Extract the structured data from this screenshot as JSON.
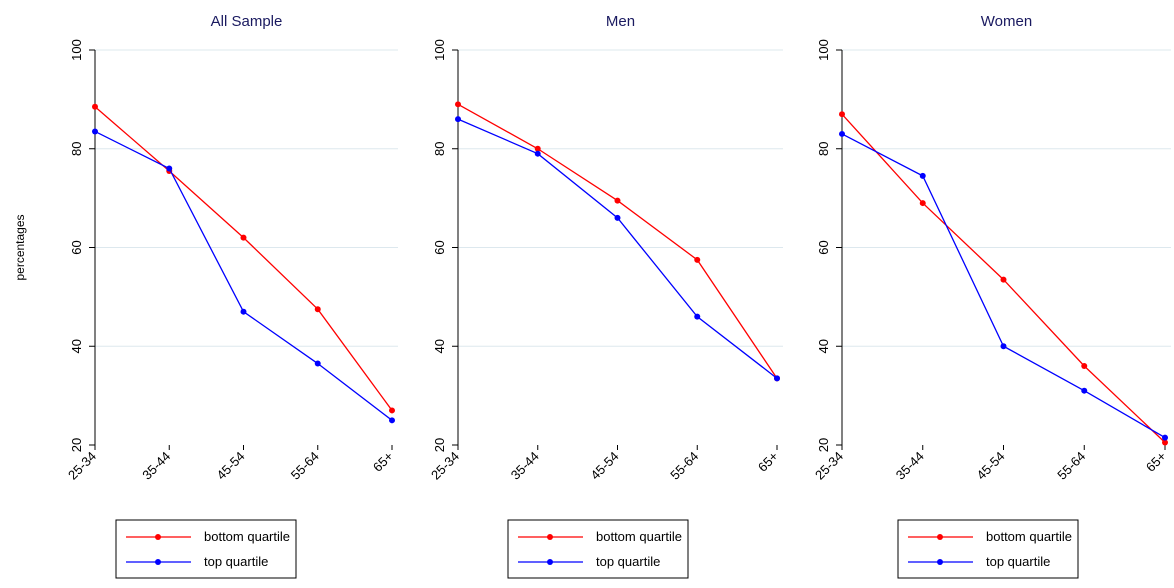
{
  "chart_data": [
    {
      "type": "line",
      "title": "All Sample",
      "ylabel": "percentages",
      "categories": [
        "25-34",
        "35-44",
        "45-54",
        "55-64",
        "65+"
      ],
      "ylim": [
        20,
        100
      ],
      "yticks": [
        20,
        40,
        60,
        80,
        100
      ],
      "series": [
        {
          "name": "bottom quartile",
          "color": "#ff0000",
          "values": [
            88.5,
            75.5,
            62,
            47.5,
            27
          ]
        },
        {
          "name": "top quartile",
          "color": "#0000ff",
          "values": [
            83.5,
            76,
            47,
            36.5,
            25
          ]
        }
      ],
      "legend": "bottom"
    },
    {
      "type": "line",
      "title": "Men",
      "categories": [
        "25-34",
        "35-44",
        "45-54",
        "55-64",
        "65+"
      ],
      "ylim": [
        20,
        100
      ],
      "yticks": [
        20,
        40,
        60,
        80,
        100
      ],
      "series": [
        {
          "name": "bottom quartile",
          "color": "#ff0000",
          "values": [
            89,
            80,
            69.5,
            57.5,
            33.5
          ]
        },
        {
          "name": "top quartile",
          "color": "#0000ff",
          "values": [
            86,
            79,
            66,
            46,
            33.5
          ]
        }
      ],
      "legend": "bottom"
    },
    {
      "type": "line",
      "title": "Women",
      "categories": [
        "25-34",
        "35-44",
        "45-54",
        "55-64",
        "65+"
      ],
      "ylim": [
        20,
        100
      ],
      "yticks": [
        20,
        40,
        60,
        80,
        100
      ],
      "series": [
        {
          "name": "bottom quartile",
          "color": "#ff0000",
          "values": [
            87,
            69,
            53.5,
            36,
            20.5
          ]
        },
        {
          "name": "top quartile",
          "color": "#0000ff",
          "values": [
            83,
            74.5,
            40,
            31,
            21.5
          ]
        }
      ],
      "legend": "bottom"
    }
  ],
  "colors": {
    "grid": "#dde8ee",
    "axis": "#000000"
  }
}
